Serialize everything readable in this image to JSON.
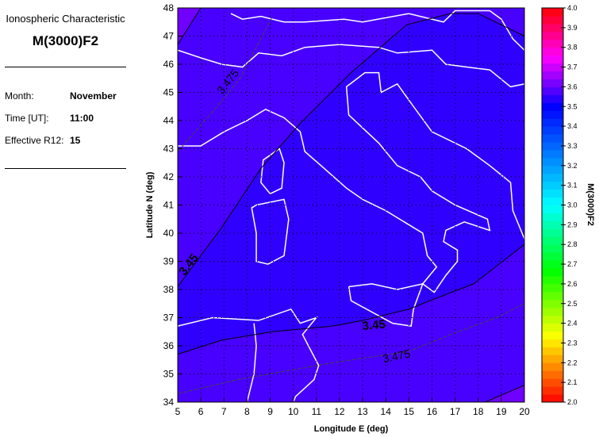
{
  "panel": {
    "subtitle": "Ionospheric Characteristic",
    "title": "M(3000)F2",
    "month_label": "Month:",
    "month": "November",
    "time_label": "Time [UT]:",
    "time": "11:00",
    "r12_label": "Effective R12:",
    "r12": "15"
  },
  "chart_data": {
    "type": "heatmap",
    "xlabel": "Longitude E (deg)",
    "ylabel": "Latitude N (deg)",
    "xlim": [
      5,
      20
    ],
    "ylim": [
      34,
      48
    ],
    "xticks": [
      5,
      6,
      7,
      8,
      9,
      10,
      11,
      12,
      13,
      14,
      15,
      16,
      17,
      18,
      19,
      20
    ],
    "yticks": [
      34,
      35,
      36,
      37,
      38,
      39,
      40,
      41,
      42,
      43,
      44,
      45,
      46,
      47,
      48
    ],
    "grid": true,
    "colorbar": {
      "label": "M(3000)F2",
      "range": [
        2.0,
        4.0
      ],
      "ticks": [
        "2.0",
        "2.1",
        "2.2",
        "2.3",
        "2.4",
        "2.5",
        "2.6",
        "2.7",
        "2.8",
        "2.9",
        "3.0",
        "3.1",
        "3.2",
        "3.3",
        "3.4",
        "3.5",
        "3.6",
        "3.7",
        "3.8",
        "3.9",
        "4.0"
      ]
    },
    "contours": [
      {
        "level": "3.45",
        "label": "3.45",
        "points": [
          [
            5,
            38.1
          ],
          [
            6.9,
            40.2
          ],
          [
            8.6,
            42.3
          ],
          [
            10.3,
            43.9
          ],
          [
            12.5,
            45.7
          ],
          [
            14.9,
            47.4
          ],
          [
            16.8,
            47.8
          ],
          [
            18.0,
            47.8
          ],
          [
            20,
            47.0
          ]
        ]
      },
      {
        "level": "3.45",
        "label": "3.45",
        "points": [
          [
            5,
            35.7
          ],
          [
            6.9,
            36.2
          ],
          [
            9.1,
            36.5
          ],
          [
            11.7,
            36.7
          ],
          [
            13.0,
            36.9
          ],
          [
            15.0,
            37.3
          ],
          [
            15.9,
            37.6
          ],
          [
            17.8,
            38.2
          ],
          [
            20,
            39.6
          ]
        ]
      },
      {
        "level": "3.475",
        "label": "3.475",
        "points": [
          [
            5,
            42.9
          ],
          [
            6.6,
            44.4
          ],
          [
            7.7,
            45.5
          ],
          [
            9.1,
            47.7
          ]
        ]
      },
      {
        "level": "3.475",
        "label": "3.475",
        "points": [
          [
            5,
            34.3
          ],
          [
            7.6,
            34.8
          ],
          [
            11.7,
            35.4
          ],
          [
            15.0,
            35.8
          ],
          [
            16.8,
            36.4
          ],
          [
            18.8,
            37.0
          ],
          [
            20,
            37.5
          ]
        ]
      },
      {
        "level": "3.475",
        "label": "",
        "points": [
          [
            5,
            46.7
          ],
          [
            6.0,
            48
          ]
        ]
      },
      {
        "level": "3.475",
        "label": "",
        "points": [
          [
            18.3,
            34
          ],
          [
            20,
            34.6
          ]
        ]
      }
    ],
    "region_colors": {
      "below_3.45": "#3000ff",
      "3.45_to_3.475": "#4800ff",
      "above_3.475": "#7000ff"
    }
  }
}
